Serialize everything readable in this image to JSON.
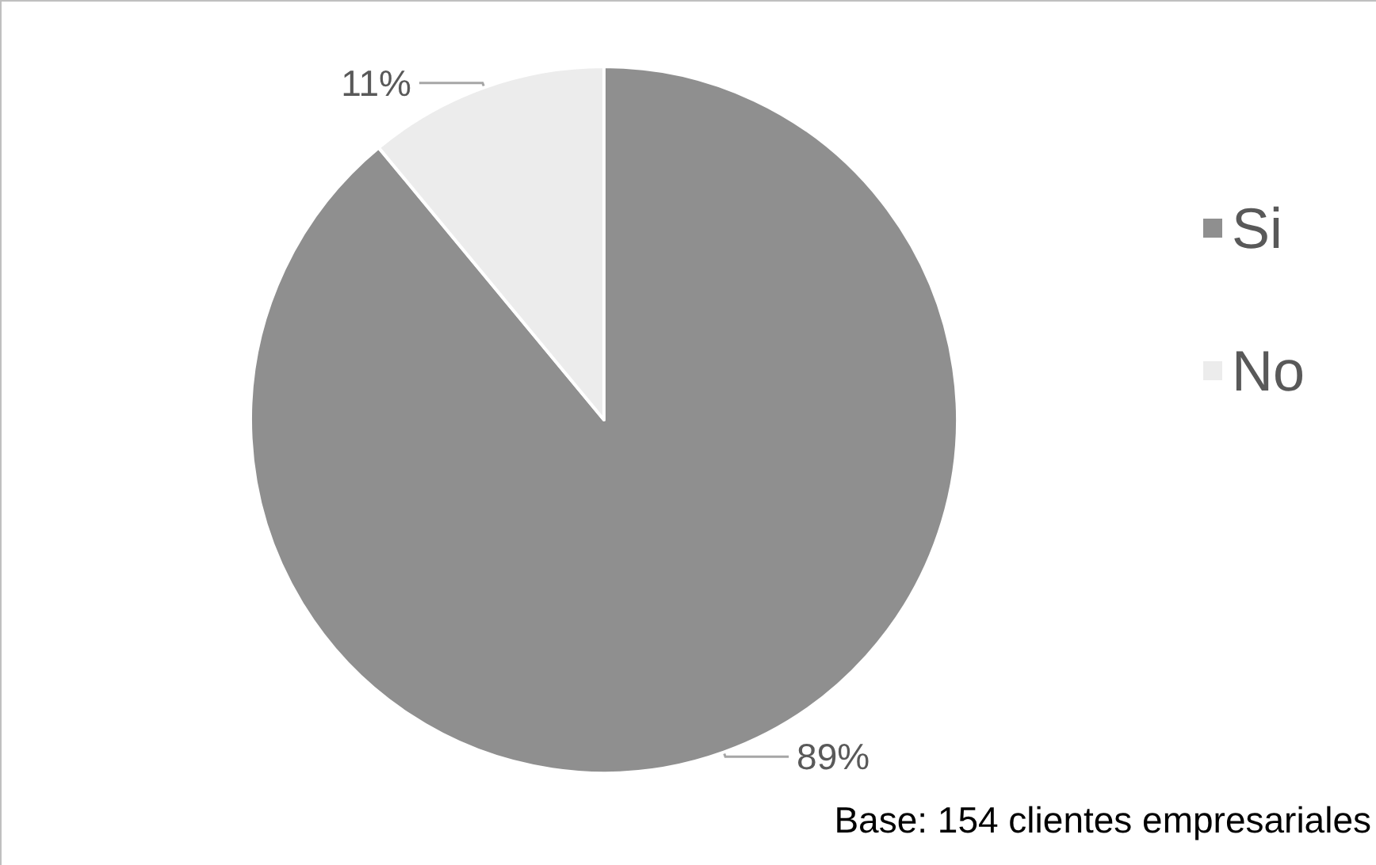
{
  "chart_data": {
    "type": "pie",
    "categories": [
      "Si",
      "No"
    ],
    "values": [
      89,
      11
    ],
    "colors": [
      "#8f8f8f",
      "#ececec"
    ],
    "value_labels": [
      "89%",
      "11%"
    ],
    "legend": "right",
    "annotations": [
      "Base: 154 clientes empresariales"
    ]
  }
}
